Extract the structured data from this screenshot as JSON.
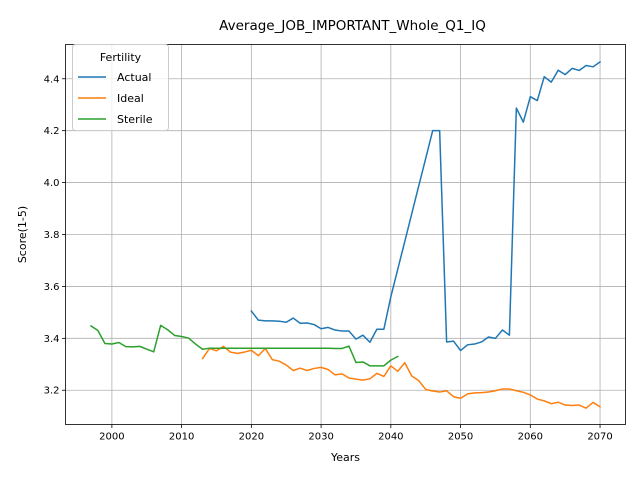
{
  "chart_data": {
    "type": "line",
    "title": "Average_JOB_IMPORTANT_Whole_Q1_IQ",
    "xlabel": "Years",
    "ylabel": "Score(1-5)",
    "xlim": [
      1993.35,
      2073.65
    ],
    "ylim": [
      3.068,
      4.532
    ],
    "xticks": [
      2000,
      2010,
      2020,
      2030,
      2040,
      2050,
      2060,
      2070
    ],
    "yticks": [
      3.2,
      3.4,
      3.6,
      3.8,
      4.0,
      4.2,
      4.4
    ],
    "grid": true,
    "legend": {
      "title": "Fertility",
      "position": "top-left"
    },
    "series": [
      {
        "name": "Actual",
        "color": "#1f77b4",
        "x": [
          2020,
          2021,
          2022,
          2023,
          2024,
          2025,
          2026,
          2027,
          2028,
          2029,
          2030,
          2031,
          2032,
          2033,
          2034,
          2035,
          2036,
          2037,
          2038,
          2039,
          2040,
          2041,
          2042,
          2043,
          2044,
          2045,
          2046,
          2047,
          2048,
          2049,
          2050,
          2051,
          2052,
          2053,
          2054,
          2055,
          2056,
          2057,
          2058,
          2059,
          2060,
          2061,
          2062,
          2063,
          2064,
          2065,
          2066,
          2067,
          2068,
          2069,
          2070
        ],
        "values": [
          3.505,
          3.47,
          3.467,
          3.467,
          3.466,
          3.462,
          3.478,
          3.458,
          3.459,
          3.453,
          3.437,
          3.442,
          3.432,
          3.428,
          3.428,
          3.397,
          3.412,
          3.385,
          3.435,
          3.435,
          3.56,
          3.667,
          3.773,
          3.88,
          3.987,
          4.093,
          4.2,
          4.2,
          3.386,
          3.389,
          3.353,
          3.375,
          3.378,
          3.386,
          3.405,
          3.4,
          3.432,
          3.412,
          4.287,
          4.233,
          4.331,
          4.316,
          4.408,
          4.387,
          4.433,
          4.416,
          4.44,
          4.432,
          4.451,
          4.446,
          4.465
        ]
      },
      {
        "name": "Ideal",
        "color": "#ff7f0e",
        "x": [
          2013,
          2014,
          2015,
          2016,
          2017,
          2018,
          2019,
          2020,
          2021,
          2022,
          2023,
          2024,
          2025,
          2026,
          2027,
          2028,
          2029,
          2030,
          2031,
          2032,
          2033,
          2034,
          2035,
          2036,
          2037,
          2038,
          2039,
          2040,
          2041,
          2042,
          2043,
          2044,
          2045,
          2046,
          2047,
          2048,
          2049,
          2050,
          2051,
          2052,
          2053,
          2054,
          2055,
          2056,
          2057,
          2058,
          2059,
          2060,
          2061,
          2062,
          2063,
          2064,
          2065,
          2066,
          2067,
          2068,
          2069,
          2070
        ],
        "values": [
          3.322,
          3.361,
          3.352,
          3.369,
          3.347,
          3.342,
          3.347,
          3.354,
          3.333,
          3.361,
          3.318,
          3.312,
          3.297,
          3.276,
          3.285,
          3.276,
          3.284,
          3.288,
          3.28,
          3.259,
          3.263,
          3.247,
          3.243,
          3.239,
          3.244,
          3.265,
          3.253,
          3.294,
          3.273,
          3.306,
          3.255,
          3.237,
          3.203,
          3.197,
          3.193,
          3.198,
          3.175,
          3.169,
          3.186,
          3.19,
          3.191,
          3.193,
          3.198,
          3.205,
          3.205,
          3.198,
          3.192,
          3.182,
          3.166,
          3.159,
          3.148,
          3.154,
          3.143,
          3.141,
          3.143,
          3.131,
          3.153,
          3.136
        ]
      },
      {
        "name": "Sterile",
        "color": "#2ca02c",
        "x": [
          1997,
          1998,
          1999,
          2000,
          2001,
          2002,
          2003,
          2004,
          2005,
          2006,
          2007,
          2008,
          2009,
          2010,
          2011,
          2012,
          2013,
          2014,
          2015,
          2016,
          2017,
          2018,
          2019,
          2020,
          2021,
          2022,
          2023,
          2024,
          2025,
          2026,
          2027,
          2028,
          2029,
          2030,
          2031,
          2032,
          2033,
          2034,
          2035,
          2036,
          2037,
          2038,
          2039,
          2040,
          2041
        ],
        "values": [
          3.448,
          3.43,
          3.38,
          3.378,
          3.384,
          3.368,
          3.367,
          3.369,
          3.358,
          3.348,
          3.45,
          3.433,
          3.411,
          3.407,
          3.401,
          3.378,
          3.358,
          3.362,
          3.362,
          3.362,
          3.362,
          3.362,
          3.362,
          3.362,
          3.362,
          3.362,
          3.362,
          3.362,
          3.362,
          3.362,
          3.362,
          3.362,
          3.362,
          3.362,
          3.362,
          3.361,
          3.361,
          3.37,
          3.307,
          3.309,
          3.294,
          3.294,
          3.294,
          3.316,
          3.33
        ]
      }
    ]
  }
}
